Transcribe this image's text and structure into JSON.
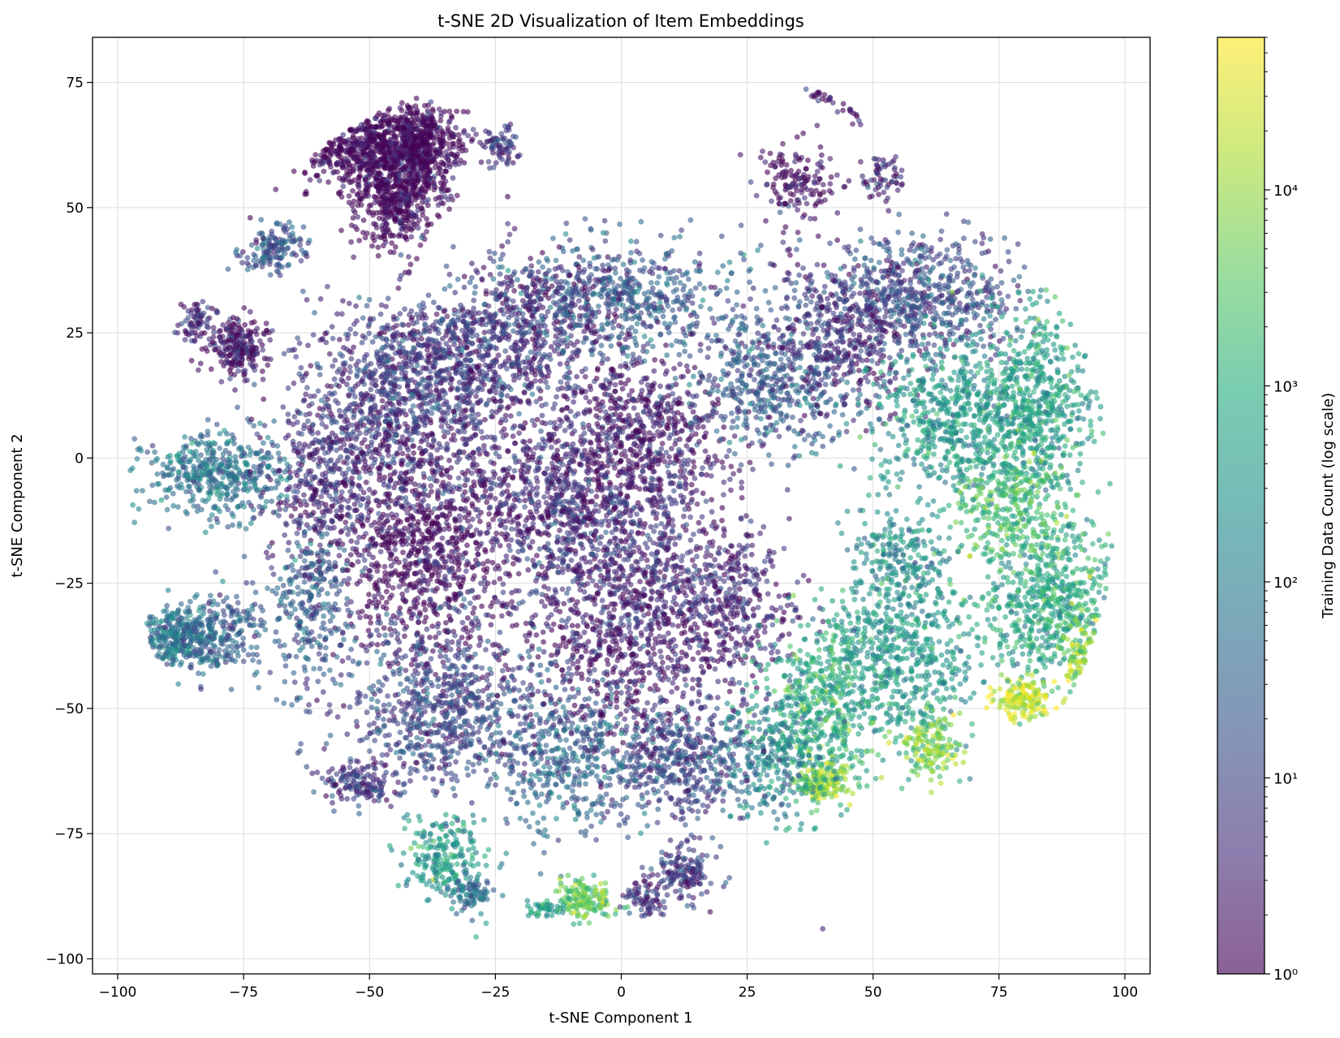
{
  "chart_data": {
    "type": "scatter",
    "title": "t-SNE 2D Visualization of Item Embeddings",
    "xlabel": "t-SNE Component 1",
    "ylabel": "t-SNE Component 2",
    "xlim": [
      -105,
      105
    ],
    "ylim": [
      -103,
      84
    ],
    "xticks": [
      -100,
      -75,
      -50,
      -25,
      0,
      25,
      50,
      75,
      100
    ],
    "xtick_labels": [
      "−100",
      "−75",
      "−50",
      "−25",
      "0",
      "25",
      "50",
      "75",
      "100"
    ],
    "yticks": [
      -100,
      -75,
      -50,
      -25,
      0,
      25,
      50,
      75
    ],
    "ytick_labels": [
      "−100",
      "−75",
      "−50",
      "−25",
      "0",
      "25",
      "50",
      "75"
    ],
    "grid": true,
    "colormap": "viridis",
    "point_alpha": 0.6,
    "colorbar": {
      "label": "Training Data Count (log scale)",
      "scale": "log",
      "range": [
        1,
        60000
      ],
      "ticks": [
        1,
        10,
        100,
        1000,
        10000
      ],
      "tick_labels": [
        "10⁰",
        "10¹",
        "10²",
        "10³",
        "10⁴"
      ]
    },
    "clusters": [
      {
        "x": -50,
        "y": 62,
        "sx": 8,
        "sy": 4,
        "log_count": 0.0,
        "weight": 5
      },
      {
        "x": -45,
        "y": 52,
        "sx": 4,
        "sy": 5,
        "log_count": 0.0,
        "weight": 3
      },
      {
        "x": -40,
        "y": 62,
        "sx": 4,
        "sy": 5,
        "log_count": 0.0,
        "weight": 3
      },
      {
        "x": -69,
        "y": 42,
        "sx": 3,
        "sy": 2.5,
        "log_count": 1.2,
        "weight": 1
      },
      {
        "x": -76,
        "y": 22,
        "sx": 3,
        "sy": 3,
        "log_count": 0.2,
        "weight": 1.5
      },
      {
        "x": -84,
        "y": 27,
        "sx": 2,
        "sy": 2,
        "log_count": 0.5,
        "weight": 0.5
      },
      {
        "x": -80,
        "y": -3,
        "sx": 7,
        "sy": 4,
        "log_count": 1.8,
        "weight": 3
      },
      {
        "x": -89,
        "y": -36,
        "sx": 4,
        "sy": 3,
        "log_count": 1.9,
        "weight": 2
      },
      {
        "x": -80,
        "y": -35,
        "sx": 4,
        "sy": 4,
        "log_count": 1.5,
        "weight": 1.5
      },
      {
        "x": -24,
        "y": 62,
        "sx": 2,
        "sy": 2,
        "log_count": 0.7,
        "weight": 0.5
      },
      {
        "x": -45,
        "y": 10,
        "sx": 10,
        "sy": 10,
        "log_count": 0.8,
        "weight": 6
      },
      {
        "x": -30,
        "y": 20,
        "sx": 10,
        "sy": 6,
        "log_count": 0.8,
        "weight": 4
      },
      {
        "x": -40,
        "y": -18,
        "sx": 9,
        "sy": 11,
        "log_count": 0.1,
        "weight": 6
      },
      {
        "x": -15,
        "y": -5,
        "sx": 10,
        "sy": 10,
        "log_count": 0.5,
        "weight": 5
      },
      {
        "x": 0,
        "y": 32,
        "sx": 14,
        "sy": 6,
        "log_count": 1.4,
        "weight": 4
      },
      {
        "x": 5,
        "y": 5,
        "sx": 8,
        "sy": 8,
        "log_count": 0.3,
        "weight": 4
      },
      {
        "x": 0,
        "y": -20,
        "sx": 12,
        "sy": 10,
        "log_count": 0.6,
        "weight": 5
      },
      {
        "x": 20,
        "y": -30,
        "sx": 8,
        "sy": 8,
        "log_count": 0.5,
        "weight": 3
      },
      {
        "x": 30,
        "y": 15,
        "sx": 8,
        "sy": 7,
        "log_count": 1.4,
        "weight": 3
      },
      {
        "x": 35,
        "y": 55,
        "sx": 4,
        "sy": 4,
        "log_count": 0.3,
        "weight": 1
      },
      {
        "x": 40,
        "y": 73,
        "sx": 1.5,
        "sy": 1,
        "log_count": 0.3,
        "weight": 0.3
      },
      {
        "x": 47,
        "y": 71,
        "sx": 1.5,
        "sy": 1.5,
        "log_count": 0.2,
        "weight": 0.3
      },
      {
        "x": 52,
        "y": 56,
        "sx": 2,
        "sy": 2,
        "log_count": 0.4,
        "weight": 0.4
      },
      {
        "x": 60,
        "y": 32,
        "sx": 10,
        "sy": 6,
        "log_count": 1.1,
        "weight": 4
      },
      {
        "x": 45,
        "y": 25,
        "sx": 8,
        "sy": 8,
        "log_count": 0.6,
        "weight": 3
      },
      {
        "x": 65,
        "y": 8,
        "sx": 8,
        "sy": 8,
        "log_count": 2.5,
        "weight": 4
      },
      {
        "x": 82,
        "y": 10,
        "sx": 6,
        "sy": 10,
        "log_count": 2.7,
        "weight": 4
      },
      {
        "x": 78,
        "y": -10,
        "sx": 6,
        "sy": 6,
        "log_count": 3.3,
        "weight": 2
      },
      {
        "x": 85,
        "y": -30,
        "sx": 7,
        "sy": 7,
        "log_count": 2.8,
        "weight": 4
      },
      {
        "x": 80,
        "y": -48,
        "sx": 3,
        "sy": 2,
        "log_count": 4.4,
        "weight": 1
      },
      {
        "x": 92,
        "y": -40,
        "sx": 2,
        "sy": 5,
        "log_count": 4.0,
        "weight": 1
      },
      {
        "x": 55,
        "y": -40,
        "sx": 8,
        "sy": 8,
        "log_count": 2.5,
        "weight": 4
      },
      {
        "x": 40,
        "y": -50,
        "sx": 7,
        "sy": 8,
        "log_count": 3.0,
        "weight": 3
      },
      {
        "x": 40,
        "y": -65,
        "sx": 3,
        "sy": 2,
        "log_count": 3.9,
        "weight": 1
      },
      {
        "x": 62,
        "y": -58,
        "sx": 3,
        "sy": 3,
        "log_count": 3.9,
        "weight": 1
      },
      {
        "x": 55,
        "y": -20,
        "sx": 5,
        "sy": 5,
        "log_count": 2.3,
        "weight": 1.5
      },
      {
        "x": 30,
        "y": -60,
        "sx": 6,
        "sy": 6,
        "log_count": 2.2,
        "weight": 2
      },
      {
        "x": 12,
        "y": -60,
        "sx": 7,
        "sy": 6,
        "log_count": 1.0,
        "weight": 3
      },
      {
        "x": -10,
        "y": -60,
        "sx": 8,
        "sy": 8,
        "log_count": 1.5,
        "weight": 3
      },
      {
        "x": -35,
        "y": -50,
        "sx": 10,
        "sy": 8,
        "log_count": 1.0,
        "weight": 5
      },
      {
        "x": -52,
        "y": -65,
        "sx": 4,
        "sy": 2,
        "log_count": 0.7,
        "weight": 1
      },
      {
        "x": -35,
        "y": -80,
        "sx": 4,
        "sy": 4,
        "log_count": 2.6,
        "weight": 1.5
      },
      {
        "x": -7,
        "y": -88,
        "sx": 3,
        "sy": 2,
        "log_count": 3.6,
        "weight": 1
      },
      {
        "x": 13,
        "y": -83,
        "sx": 3,
        "sy": 3,
        "log_count": 0.8,
        "weight": 1
      },
      {
        "x": 5,
        "y": -88,
        "sx": 2,
        "sy": 2,
        "log_count": 0.7,
        "weight": 0.5
      },
      {
        "x": -30,
        "y": -87,
        "sx": 2,
        "sy": 2,
        "log_count": 1.7,
        "weight": 0.5
      },
      {
        "x": -15,
        "y": -90,
        "sx": 2,
        "sy": 1,
        "log_count": 2.5,
        "weight": 0.3
      },
      {
        "x": -62,
        "y": -30,
        "sx": 5,
        "sy": 8,
        "log_count": 1.4,
        "weight": 2
      },
      {
        "x": -60,
        "y": -5,
        "sx": 5,
        "sy": 8,
        "log_count": 0.6,
        "weight": 2
      },
      {
        "x": 0,
        "y": -40,
        "sx": 10,
        "sy": 8,
        "log_count": 0.3,
        "weight": 3
      },
      {
        "x": -15,
        "y": 30,
        "sx": 8,
        "sy": 6,
        "log_count": 0.6,
        "weight": 2
      }
    ]
  }
}
